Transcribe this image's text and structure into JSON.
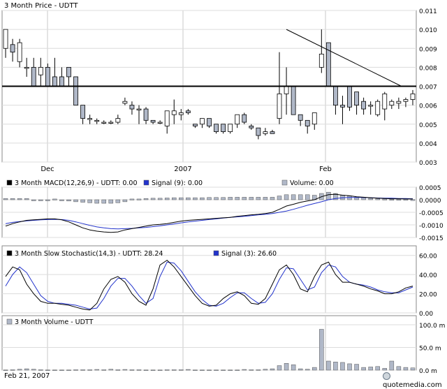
{
  "footer": {
    "date": "Feb 21, 2007",
    "brand": "quotemedia.com"
  },
  "colors": {
    "series_black": "#000000",
    "series_blue": "#2233cc",
    "volume_bar": "#b0b8c8",
    "grid": "#c8c8c8",
    "frame": "#8a8a8a"
  },
  "chart_data": [
    {
      "type": "candlestick",
      "title": "3 Month Price - UDTT",
      "x_tick_labels": [
        "Dec",
        "2007",
        "Feb"
      ],
      "y_ticks": [
        "0.011",
        "0.010",
        "0.009",
        "0.008",
        "0.007",
        "0.006",
        "0.005",
        "0.004",
        "0.003"
      ],
      "ylim": [
        0.003,
        0.011
      ],
      "grid": true,
      "annotations": {
        "support_line": 0.007,
        "trendline": {
          "from": [
            40,
            0.01
          ],
          "to": [
            55,
            0.007
          ]
        }
      },
      "candles": [
        [
          0.009,
          0.01,
          0.0085,
          0.01
        ],
        [
          0.0092,
          0.0095,
          0.0083,
          0.0088
        ],
        [
          0.0083,
          0.0095,
          0.008,
          0.0093
        ],
        [
          0.008,
          0.0085,
          0.0075,
          0.008
        ],
        [
          0.008,
          0.0085,
          0.007,
          0.007
        ],
        [
          0.0076,
          0.0085,
          0.007,
          0.008
        ],
        [
          0.008,
          0.0082,
          0.007,
          0.007
        ],
        [
          0.0075,
          0.0085,
          0.007,
          0.007
        ],
        [
          0.0075,
          0.008,
          0.007,
          0.007
        ],
        [
          0.008,
          0.008,
          0.007,
          0.0075
        ],
        [
          0.0075,
          0.0075,
          0.006,
          0.006
        ],
        [
          0.006,
          0.006,
          0.005,
          0.0053
        ],
        [
          0.0053,
          0.0055,
          0.005,
          0.0053
        ],
        [
          0.0052,
          0.0053,
          0.005,
          0.0052
        ],
        [
          0.0051,
          0.0052,
          0.005,
          0.0051
        ],
        [
          0.0051,
          0.0052,
          0.005,
          0.0051
        ],
        [
          0.0051,
          0.0055,
          0.005,
          0.0053
        ],
        [
          0.0061,
          0.0064,
          0.006,
          0.0062
        ],
        [
          0.006,
          0.0062,
          0.0055,
          0.0058
        ],
        [
          0.0058,
          0.006,
          0.005,
          0.0058
        ],
        [
          0.0058,
          0.0059,
          0.005,
          0.0052
        ],
        [
          0.0052,
          0.0052,
          0.005,
          0.0051
        ],
        [
          0.0051,
          0.0052,
          0.005,
          0.0051
        ],
        [
          0.0049,
          0.0057,
          0.0045,
          0.0057
        ],
        [
          0.0055,
          0.0063,
          0.005,
          0.0057
        ],
        [
          0.0055,
          0.0058,
          0.0052,
          0.0056
        ],
        [
          0.0057,
          0.0058,
          0.0055,
          0.0056
        ],
        [
          0.005,
          0.005,
          0.0048,
          0.0049
        ],
        [
          0.005,
          0.0053,
          0.0048,
          0.0053
        ],
        [
          0.0053,
          0.0053,
          0.0048,
          0.0049
        ],
        [
          0.005,
          0.005,
          0.0045,
          0.0046
        ],
        [
          0.005,
          0.005,
          0.0045,
          0.0046
        ],
        [
          0.0046,
          0.005,
          0.0045,
          0.005
        ],
        [
          0.005,
          0.0055,
          0.0048,
          0.0055
        ],
        [
          0.0055,
          0.0056,
          0.005,
          0.0051
        ],
        [
          0.0049,
          0.005,
          0.0047,
          0.0048
        ],
        [
          0.0048,
          0.0048,
          0.0042,
          0.0044
        ],
        [
          0.0045,
          0.0048,
          0.0044,
          0.0046
        ],
        [
          0.0046,
          0.0047,
          0.0045,
          0.0045
        ],
        [
          0.0053,
          0.0088,
          0.005,
          0.0066
        ],
        [
          0.0066,
          0.008,
          0.0055,
          0.007
        ],
        [
          0.007,
          0.007,
          0.0055,
          0.0055
        ],
        [
          0.0055,
          0.0055,
          0.0049,
          0.0052
        ],
        [
          0.0052,
          0.0052,
          0.0045,
          0.0049
        ],
        [
          0.005,
          0.0056,
          0.0047,
          0.0056
        ],
        [
          0.008,
          0.01,
          0.0077,
          0.0087
        ],
        [
          0.0093,
          0.0093,
          0.007,
          0.007
        ],
        [
          0.007,
          0.007,
          0.0055,
          0.006
        ],
        [
          0.006,
          0.0065,
          0.005,
          0.0059
        ],
        [
          0.007,
          0.007,
          0.0057,
          0.0059
        ],
        [
          0.0067,
          0.0067,
          0.0055,
          0.006
        ],
        [
          0.0062,
          0.0064,
          0.0055,
          0.0058
        ],
        [
          0.006,
          0.0062,
          0.0055,
          0.006
        ],
        [
          0.0055,
          0.0063,
          0.0054,
          0.0062
        ],
        [
          0.0058,
          0.0067,
          0.0052,
          0.0066
        ],
        [
          0.006,
          0.0063,
          0.0058,
          0.0062
        ],
        [
          0.0061,
          0.0064,
          0.0058,
          0.0062
        ],
        [
          0.0062,
          0.0064,
          0.0059,
          0.0063
        ],
        [
          0.0063,
          0.0068,
          0.006,
          0.0066
        ]
      ]
    },
    {
      "type": "bar+line",
      "legend": [
        {
          "label": "3 Month MACD(12,26,9) - UDTT: 0.00",
          "color": "#000000"
        },
        {
          "label": "Signal (9): 0.00",
          "color": "#2233cc"
        },
        {
          "label": "Volume: 0.00",
          "color": "#b0b8c8"
        }
      ],
      "y_ticks": [
        "0.0005",
        "0.0000",
        "-0.0005",
        "-0.0010",
        "-0.0015"
      ],
      "ylim": [
        -0.0015,
        0.0005
      ],
      "macd": [
        -0.00105,
        -0.00095,
        -0.00088,
        -0.00082,
        -0.0008,
        -0.00078,
        -0.00076,
        -0.00076,
        -0.0008,
        -0.00088,
        -0.001,
        -0.00112,
        -0.0012,
        -0.00125,
        -0.00128,
        -0.0013,
        -0.00128,
        -0.0012,
        -0.00115,
        -0.0011,
        -0.00105,
        -0.001,
        -0.00098,
        -0.00095,
        -0.0009,
        -0.00085,
        -0.00082,
        -0.0008,
        -0.00078,
        -0.00076,
        -0.00074,
        -0.00072,
        -0.0007,
        -0.00066,
        -0.00063,
        -0.0006,
        -0.00058,
        -0.00055,
        -0.0005,
        -0.00038,
        -0.00025,
        -0.00018,
        -0.0001,
        -5e-05,
        0.0,
        0.00012,
        0.0002,
        0.00022,
        0.00018,
        0.00016,
        0.00012,
        0.0001,
        8e-05,
        6e-05,
        5e-05,
        4e-05,
        4e-05,
        3e-05,
        3e-05
      ],
      "signal": [
        -0.00095,
        -0.0009,
        -0.00087,
        -0.00084,
        -0.00082,
        -0.0008,
        -0.00079,
        -0.00078,
        -0.00079,
        -0.00082,
        -0.00088,
        -0.00095,
        -0.00102,
        -0.00108,
        -0.00112,
        -0.00115,
        -0.00116,
        -0.00115,
        -0.00114,
        -0.00112,
        -0.0011,
        -0.00107,
        -0.00104,
        -0.001,
        -0.00096,
        -0.00092,
        -0.00088,
        -0.00085,
        -0.00082,
        -0.00079,
        -0.00076,
        -0.00073,
        -0.0007,
        -0.00068,
        -0.00066,
        -0.00063,
        -0.0006,
        -0.00058,
        -0.00055,
        -0.0005,
        -0.00045,
        -0.00038,
        -0.0003,
        -0.00022,
        -0.00015,
        -8e-05,
        0.0,
        5e-05,
        8e-05,
        9e-05,
        9e-05,
        9e-05,
        8e-05,
        7e-05,
        6e-05,
        6e-05,
        5e-05,
        5e-05,
        4e-05
      ],
      "histogram": [
        5e-05,
        5e-05,
        5e-05,
        5e-05,
        0.0,
        0.0,
        0.0,
        3e-05,
        -3e-05,
        -5e-05,
        -8e-05,
        -0.0001,
        -0.00012,
        -0.00014,
        -0.00014,
        -0.00014,
        -0.00012,
        -8e-05,
        3e-05,
        3e-05,
        5e-05,
        6e-05,
        6e-05,
        7e-05,
        8e-05,
        8e-05,
        8e-05,
        8e-05,
        8e-05,
        9e-05,
        9e-05,
        9e-05,
        0.0001,
        0.0001,
        0.0001,
        0.0001,
        0.0001,
        0.0001,
        0.0001,
        0.00015,
        0.0002,
        0.0002,
        0.0002,
        0.0002,
        0.00018,
        0.00025,
        0.0003,
        0.00025,
        0.00018,
        0.00015,
        0.0001,
        8e-05,
        6e-05,
        4e-05,
        3e-05,
        2e-05,
        2e-05,
        2e-05,
        1e-05
      ]
    },
    {
      "type": "line",
      "legend": [
        {
          "label": "3 Month  Slow Stochastic(14,3) - UDTT: 28.24",
          "color": "#000000"
        },
        {
          "label": "Signal (3): 26.60",
          "color": "#2233cc"
        }
      ],
      "y_ticks": [
        "60.00",
        "40.00",
        "20.00",
        "0.00"
      ],
      "ylim": [
        0,
        70
      ],
      "stochastic": [
        38,
        48,
        45,
        30,
        20,
        12,
        10,
        10,
        9,
        8,
        6,
        4,
        3,
        10,
        25,
        35,
        38,
        32,
        20,
        12,
        8,
        25,
        50,
        55,
        48,
        38,
        28,
        18,
        10,
        7,
        8,
        15,
        20,
        22,
        18,
        10,
        9,
        15,
        30,
        45,
        50,
        40,
        25,
        22,
        38,
        50,
        53,
        40,
        32,
        32,
        30,
        28,
        25,
        23,
        20,
        20,
        22,
        26,
        28
      ],
      "signal": [
        28,
        40,
        48,
        42,
        30,
        18,
        12,
        10,
        10,
        9,
        8,
        6,
        4,
        5,
        15,
        28,
        36,
        36,
        28,
        18,
        10,
        15,
        38,
        53,
        52,
        44,
        33,
        22,
        14,
        8,
        7,
        10,
        16,
        21,
        21,
        15,
        10,
        11,
        20,
        35,
        47,
        46,
        35,
        24,
        27,
        42,
        50,
        48,
        38,
        32,
        30,
        29,
        27,
        24,
        22,
        21,
        21,
        24,
        27
      ]
    },
    {
      "type": "bar",
      "legend": [
        {
          "label": "3 Month Volume - UDTT",
          "color": "#b0b8c8"
        }
      ],
      "y_ticks": [
        "100.0 m",
        "50.0 m",
        "0.0 m"
      ],
      "ylim": [
        0,
        120
      ],
      "values": [
        0.5,
        1,
        2,
        3,
        2,
        1,
        0.5,
        0.5,
        0.5,
        0.5,
        1,
        1,
        1,
        1.5,
        1,
        2,
        1,
        1.5,
        1,
        1,
        0.5,
        0.5,
        0.5,
        1,
        1,
        1,
        1.5,
        0.5,
        0.5,
        0.5,
        0.5,
        0.5,
        0.5,
        0.5,
        1.5,
        1,
        1,
        2,
        3,
        10,
        15,
        12,
        3,
        2,
        6,
        90,
        20,
        18,
        17,
        14,
        13,
        6,
        7,
        8,
        4,
        20,
        8,
        6,
        5
      ]
    }
  ]
}
